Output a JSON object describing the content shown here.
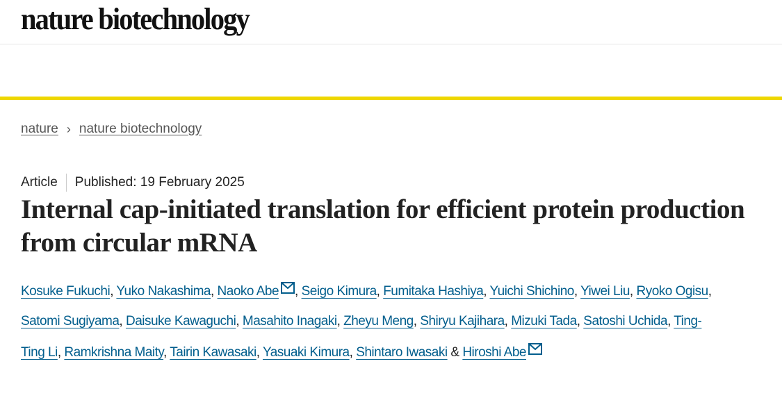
{
  "header": {
    "logo": "nature biotechnology"
  },
  "breadcrumb": [
    {
      "label": "nature"
    },
    {
      "label": "nature biotechnology"
    }
  ],
  "article": {
    "type": "Article",
    "published": "Published: 19 February 2025",
    "title": "Internal cap-initiated translation for efficient protein production from circular mRNA",
    "authors": [
      {
        "name": "Kosuke Fukuchi"
      },
      {
        "name": "Yuko Nakashima"
      },
      {
        "name": "Naoko Abe",
        "corresponding": true
      },
      {
        "name": "Seigo Kimura"
      },
      {
        "name": "Fumitaka Hashiya"
      },
      {
        "name": "Yuichi Shichino"
      },
      {
        "name": "Yiwei Liu"
      },
      {
        "name": "Ryoko Ogisu"
      },
      {
        "name": "Satomi Sugiyama"
      },
      {
        "name": "Daisuke Kawaguchi"
      },
      {
        "name": "Masahito Inagaki"
      },
      {
        "name": "Zheyu Meng"
      },
      {
        "name": "Shiryu Kajihara"
      },
      {
        "name": "Mizuki Tada"
      },
      {
        "name": "Satoshi Uchida"
      },
      {
        "name": "Ting-Ting Li"
      },
      {
        "name": "Ramkrishna Maity"
      },
      {
        "name": "Tairin Kawasaki"
      },
      {
        "name": "Yasuaki Kimura"
      },
      {
        "name": "Shintaro Iwasaki"
      },
      {
        "name": "Hiroshi Abe",
        "corresponding": true
      }
    ],
    "last_separator": "&"
  },
  "colors": {
    "accent_bar": "#eed700",
    "link": "#025e8d"
  },
  "icons": {
    "chevron": "chevron-right-icon",
    "mail": "envelope-icon"
  }
}
